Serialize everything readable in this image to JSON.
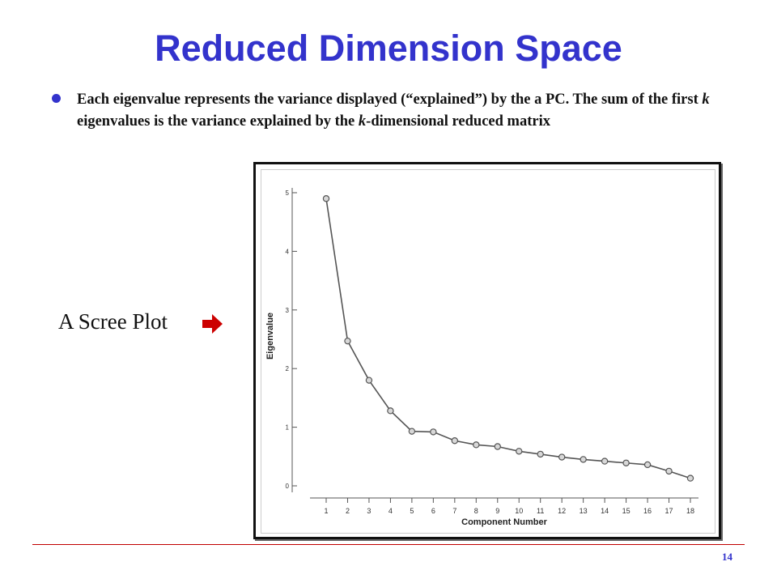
{
  "slide": {
    "title": "Reduced Dimension Space",
    "bullet_parts": [
      {
        "text": "Each eigenvalue represents the variance displayed (“explained”) by the a PC. The sum of the first ",
        "italic": false
      },
      {
        "text": "k",
        "italic": true
      },
      {
        "text": " eigenvalues is the variance explained by the ",
        "italic": false
      },
      {
        "text": "k",
        "italic": true
      },
      {
        "text": "-dimensional reduced matrix",
        "italic": false
      }
    ],
    "scree_label": "A Scree Plot",
    "arrow_icon": "right-arrow-icon",
    "page_number": "14",
    "colors": {
      "title": "#3333cc",
      "bullet": "#3333cc",
      "arrow": "#cc0000",
      "footer_line": "#c00000"
    }
  },
  "chart_data": {
    "type": "line",
    "x": [
      1,
      2,
      3,
      4,
      5,
      6,
      7,
      8,
      9,
      10,
      11,
      12,
      13,
      14,
      15,
      16,
      17,
      18
    ],
    "series": [
      {
        "values": [
          4.9,
          2.47,
          1.8,
          1.28,
          0.93,
          0.92,
          0.77,
          0.7,
          0.67,
          0.59,
          0.54,
          0.49,
          0.45,
          0.42,
          0.39,
          0.36,
          0.25,
          0.13
        ]
      }
    ],
    "x_ticks": [
      "1",
      "2",
      "3",
      "4",
      "5",
      "6",
      "7",
      "8",
      "9",
      "10",
      "11",
      "12",
      "13",
      "14",
      "15",
      "16",
      "17",
      "18"
    ],
    "y_ticks": [
      "0",
      "1",
      "2",
      "3",
      "4",
      "5"
    ],
    "xlabel": "Component Number",
    "ylabel": "Eigenvalue",
    "xlim": [
      1,
      18
    ],
    "ylim": [
      0,
      5
    ],
    "grid": false
  }
}
